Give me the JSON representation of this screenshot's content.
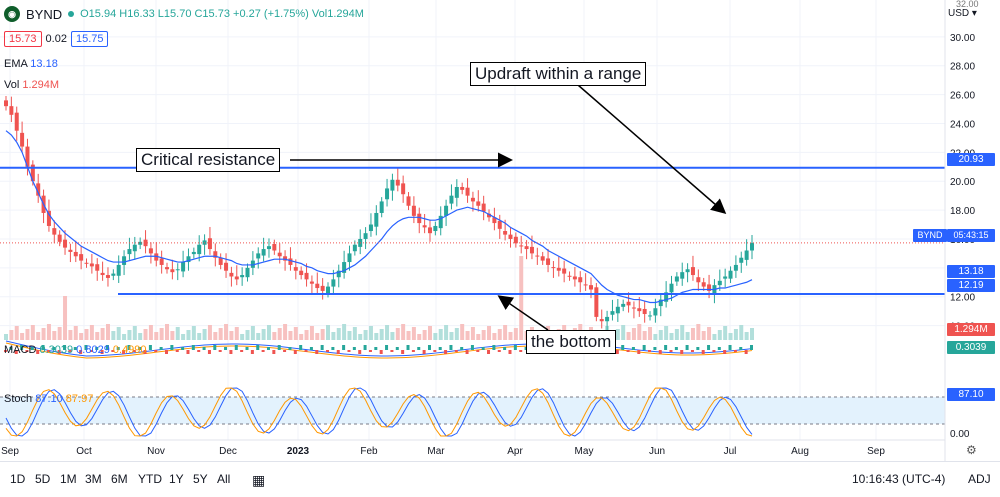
{
  "header": {
    "symbol": "BYND",
    "ohlc": "O15.94 H16.33 L15.70 C15.73 +0.27 (+1.75%) Vol1.294M",
    "bid": "15.73",
    "spread": "0.02",
    "ask": "15.75"
  },
  "indicators": {
    "ema_label": "EMA",
    "ema_value": "13.18",
    "vol_label": "Vol",
    "vol_value": "1.294M",
    "macd_label": "MACD",
    "macd_v1": "0.3039",
    "macd_v2": "0.8029",
    "macd_v3": "0.4990",
    "stoch_label": "Stoch",
    "stoch_k": "87.10",
    "stoch_d": "87.97"
  },
  "annotations": {
    "critical_resistance": "Critical resistance",
    "updraft": "Updraft within a range",
    "bottom": "the bottom"
  },
  "price_axis": {
    "currency": "USD",
    "ticks": [
      "30.00",
      "28.00",
      "26.00",
      "24.00",
      "22.00",
      "20.00",
      "18.00",
      "16.00",
      "14.00",
      "12.00",
      "10.00"
    ],
    "top_partial": "32.00",
    "last_label": "BYND",
    "countdown": "05:43:15",
    "resistance": "20.93",
    "ema_tag": "13.18",
    "support": "12.19",
    "vol_tag": "1.294M",
    "macd_tag": "0.3039",
    "stoch_tag": "87.10",
    "stoch_zero": "0.00"
  },
  "time_axis": [
    "Sep",
    "Oct",
    "Nov",
    "Dec",
    "2023",
    "Feb",
    "Mar",
    "Apr",
    "May",
    "Jun",
    "Jul",
    "Aug",
    "Sep"
  ],
  "bottom_bar": {
    "timeframes": [
      "1D",
      "5D",
      "1M",
      "3M",
      "6M",
      "YTD",
      "1Y",
      "5Y",
      "All"
    ],
    "clock": "10:16:43 (UTC-4)",
    "adj": "ADJ"
  },
  "colors": {
    "up": "#26a69a",
    "down": "#ef5350",
    "ema": "#2962ff",
    "level": "#2962ff",
    "macd_signal": "#ff9800",
    "stoch_band": "#e3f2fd"
  },
  "chart_data": {
    "type": "candlestick",
    "ylim": [
      9,
      32
    ],
    "levels": {
      "resistance": 20.93,
      "support": 12.19
    },
    "closes": [
      25.2,
      24.6,
      23.5,
      22.4,
      21.0,
      20.0,
      19.0,
      17.8,
      16.9,
      16.3,
      15.8,
      15.4,
      15.1,
      14.8,
      14.5,
      14.3,
      14.1,
      13.8,
      13.5,
      13.3,
      13.6,
      14.2,
      14.8,
      15.3,
      15.6,
      15.8,
      15.5,
      15.0,
      14.5,
      14.2,
      13.9,
      13.7,
      13.9,
      14.4,
      14.8,
      15.1,
      15.6,
      15.9,
      15.3,
      14.7,
      14.2,
      13.8,
      13.4,
      13.2,
      13.5,
      14.0,
      14.5,
      15.0,
      15.3,
      15.5,
      15.2,
      14.8,
      14.5,
      14.2,
      13.8,
      13.5,
      13.2,
      12.9,
      12.6,
      12.4,
      12.7,
      13.2,
      13.8,
      14.4,
      15.0,
      15.6,
      16.0,
      16.4,
      17.0,
      17.8,
      18.6,
      19.5,
      20.1,
      19.7,
      19.1,
      18.3,
      17.6,
      17.1,
      16.8,
      16.4,
      16.9,
      17.6,
      18.3,
      19.0,
      19.6,
      19.4,
      19.0,
      18.6,
      18.3,
      17.9,
      17.5,
      17.1,
      16.7,
      16.3,
      16.0,
      15.7,
      15.5,
      15.3,
      15.0,
      14.8,
      14.5,
      14.2,
      14.0,
      13.8,
      13.6,
      13.4,
      13.2,
      13.0,
      12.8,
      12.5,
      10.6,
      10.3,
      10.6,
      11.0,
      11.3,
      11.5,
      11.4,
      11.2,
      11.0,
      10.8,
      10.7,
      11.2,
      11.8,
      12.3,
      12.9,
      13.4,
      13.7,
      13.9,
      13.5,
      13.0,
      12.7,
      12.4,
      12.8,
      13.1,
      13.4,
      13.8,
      14.2,
      14.7,
      15.2,
      15.73
    ],
    "ema": [
      23.5,
      23.2,
      22.7,
      22.0,
      21.0,
      20.0,
      19.2,
      18.4,
      17.7,
      17.2,
      16.8,
      16.4,
      16.1,
      15.8,
      15.5,
      15.3,
      15.1,
      14.9,
      14.7,
      14.5,
      14.4,
      14.4,
      14.4,
      14.5,
      14.6,
      14.7,
      14.8,
      14.8,
      14.8,
      14.7,
      14.6,
      14.5,
      14.4,
      14.4,
      14.5,
      14.6,
      14.7,
      14.8,
      14.8,
      14.8,
      14.7,
      14.6,
      14.5,
      14.3,
      14.2,
      14.2,
      14.2,
      14.3,
      14.4,
      14.5,
      14.6,
      14.6,
      14.6,
      14.5,
      14.4,
      14.3,
      14.1,
      14.0,
      13.8,
      13.7,
      13.6,
      13.6,
      13.7,
      13.8,
      14.0,
      14.2,
      14.5,
      14.8,
      15.2,
      15.6,
      16.0,
      16.5,
      16.9,
      17.2,
      17.4,
      17.5,
      17.5,
      17.5,
      17.4,
      17.3,
      17.3,
      17.4,
      17.6,
      17.8,
      18.0,
      18.1,
      18.2,
      18.1,
      18.0,
      17.9,
      17.7,
      17.5,
      17.3,
      17.1,
      16.8,
      16.6,
      16.4,
      16.2,
      15.9,
      15.7,
      15.5,
      15.2,
      15.0,
      14.8,
      14.6,
      14.4,
      14.2,
      14.0,
      13.8,
      13.6,
      13.2,
      12.8,
      12.5,
      12.3,
      12.1,
      12.0,
      11.9,
      11.8,
      11.8,
      11.7,
      11.6,
      11.6,
      11.7,
      11.8,
      11.9,
      12.1,
      12.3,
      12.4,
      12.5,
      12.5,
      12.5,
      12.5,
      12.5,
      12.6,
      12.6,
      12.7,
      12.8,
      12.9,
      13.0,
      13.18
    ],
    "volume_peaks": [
      {
        "index": 11,
        "label": "Oct"
      },
      {
        "index": 96,
        "label": "Mar"
      }
    ],
    "stoch_k_last": 87.1,
    "stoch_d_last": 87.97,
    "macd_last": 0.3039
  }
}
